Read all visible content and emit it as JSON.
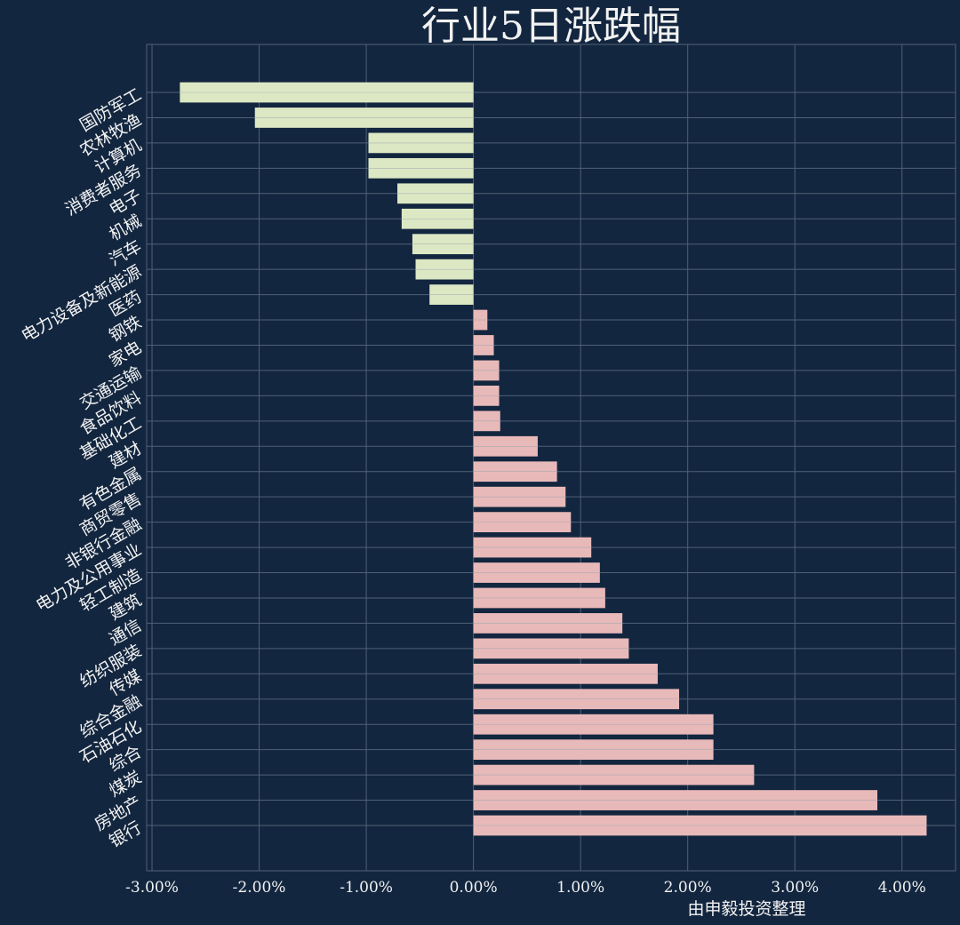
{
  "chart_data": {
    "type": "bar",
    "orientation": "horizontal",
    "title": "行业5日涨跌幅",
    "source_note": "由申毅投资整理",
    "categories": [
      "国防军工",
      "农林牧渔",
      "计算机",
      "消费者服务",
      "电子",
      "机械",
      "汽车",
      "电力设备及新能源",
      "医药",
      "钢铁",
      "家电",
      "交通运输",
      "食品饮料",
      "基础化工",
      "建材",
      "有色金属",
      "商贸零售",
      "非银行金融",
      "电力及公用事业",
      "轻工制造",
      "建筑",
      "通信",
      "纺织服装",
      "传媒",
      "综合金融",
      "石油石化",
      "综合",
      "煤炭",
      "房地产",
      "银行"
    ],
    "values": [
      -2.74,
      -2.04,
      -0.98,
      -0.98,
      -0.71,
      -0.67,
      -0.57,
      -0.54,
      -0.41,
      0.13,
      0.19,
      0.24,
      0.24,
      0.25,
      0.6,
      0.78,
      0.86,
      0.91,
      1.1,
      1.18,
      1.23,
      1.39,
      1.45,
      1.72,
      1.92,
      2.24,
      2.24,
      2.62,
      3.77,
      4.23
    ],
    "xlim": [
      -3.05,
      4.5
    ],
    "xticks": [
      -3,
      -2,
      -1,
      0,
      1,
      2,
      3,
      4
    ],
    "xtick_labels": [
      "-3.00%",
      "-2.00%",
      "-1.00%",
      "0.00%",
      "1.00%",
      "2.00%",
      "3.00%",
      "4.00%"
    ],
    "grid": true,
    "colors": {
      "background": "#13263f",
      "negative_bar": "#dce8c3",
      "positive_bar": "#e8b9b9",
      "grid": "#4f6177",
      "text": "#f2f2f2"
    }
  }
}
